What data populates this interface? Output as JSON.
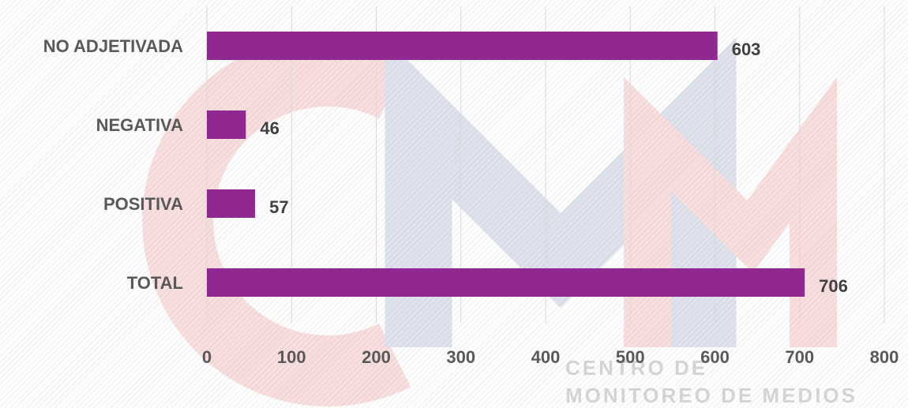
{
  "chart_data": {
    "type": "bar",
    "orientation": "horizontal",
    "categories": [
      "NO ADJETIVADA",
      "NEGATIVA",
      "POSITIVA",
      "TOTAL"
    ],
    "values": [
      603,
      46,
      57,
      706
    ],
    "xlim": [
      0,
      800
    ],
    "x_ticks": [
      0,
      100,
      200,
      300,
      400,
      500,
      600,
      700,
      800
    ],
    "bar_color": "#912891",
    "grid": true
  },
  "watermark": {
    "logo": "CMM",
    "line1": "CENTRO DE",
    "line2": "MONITOREO DE MEDIOS",
    "colors": {
      "red": "#e98b8b",
      "blue": "#8c9bbd"
    }
  }
}
